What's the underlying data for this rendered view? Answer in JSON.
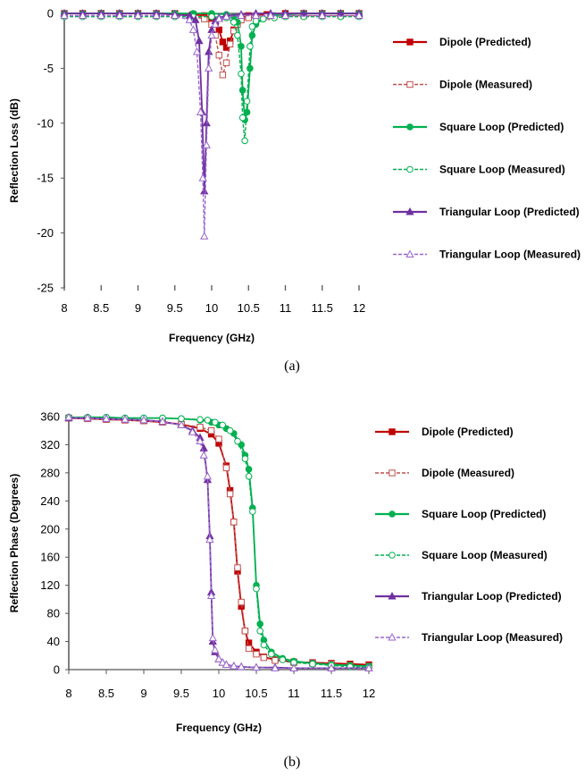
{
  "colors": {
    "dipole": "#c00000",
    "dipole_measured": "#c0504d",
    "square": "#00b050",
    "triangular": "#7030a0",
    "triangular_measured": "#9966cc"
  },
  "chart_data": [
    {
      "type": "line",
      "caption": "(a)",
      "xlabel": "Frequency (GHz)",
      "ylabel": "Reflection Loss (dB)",
      "xlim": [
        8,
        12
      ],
      "ylim": [
        -25,
        0
      ],
      "xticks": [
        "8",
        "8.5",
        "9",
        "9.5",
        "10",
        "10.5",
        "11",
        "11.5",
        "12"
      ],
      "yticks": [
        "0",
        "-5",
        "-10",
        "-15",
        "-20",
        "-25"
      ],
      "grid": false,
      "legend_position": "right",
      "series": [
        {
          "name": "Dipole (Predicted)",
          "color": "#c00000",
          "dash": false,
          "marker": "square",
          "filled": true,
          "x": [
            8,
            8.25,
            8.5,
            8.75,
            9,
            9.25,
            9.5,
            9.75,
            9.9,
            10.0,
            10.05,
            10.1,
            10.15,
            10.2,
            10.25,
            10.3,
            10.35,
            10.4,
            10.5,
            10.75,
            11,
            11.25,
            11.5,
            11.75,
            12
          ],
          "y": [
            0,
            0,
            0,
            0,
            0,
            0,
            0,
            -0.1,
            -0.2,
            -0.4,
            -0.8,
            -1.5,
            -2.6,
            -3.1,
            -2.5,
            -1.5,
            -0.8,
            -0.4,
            -0.2,
            -0.1,
            0,
            0,
            0,
            0,
            0
          ]
        },
        {
          "name": "Dipole (Measured)",
          "color": "#c0504d",
          "dash": true,
          "marker": "square",
          "filled": false,
          "x": [
            8,
            8.25,
            8.5,
            8.75,
            9,
            9.25,
            9.5,
            9.75,
            9.9,
            10.0,
            10.05,
            10.1,
            10.15,
            10.2,
            10.25,
            10.3,
            10.35,
            10.4,
            10.5,
            10.75,
            11,
            11.25,
            11.5,
            11.75,
            12
          ],
          "y": [
            -0.2,
            -0.2,
            -0.2,
            -0.2,
            -0.2,
            -0.2,
            -0.2,
            -0.3,
            -0.5,
            -1.0,
            -2.0,
            -3.8,
            -5.6,
            -4.5,
            -2.8,
            -1.6,
            -1.0,
            -0.6,
            -0.4,
            -0.3,
            -0.2,
            -0.2,
            -0.2,
            -0.2,
            -0.2
          ]
        },
        {
          "name": "Square Loop (Predicted)",
          "color": "#00b050",
          "dash": false,
          "marker": "circle",
          "filled": true,
          "x": [
            8,
            8.25,
            8.5,
            8.75,
            9,
            9.25,
            9.5,
            9.75,
            10,
            10.2,
            10.3,
            10.35,
            10.4,
            10.42,
            10.45,
            10.48,
            10.52,
            10.55,
            10.6,
            10.7,
            10.85,
            11,
            11.25,
            11.5,
            11.75,
            12
          ],
          "y": [
            0,
            0,
            0,
            0,
            0,
            0,
            0,
            0,
            0,
            -0.1,
            -0.3,
            -0.8,
            -3.0,
            -7.0,
            -9.7,
            -9.0,
            -5.0,
            -2.0,
            -1.0,
            -0.5,
            -0.2,
            -0.1,
            0,
            0,
            0,
            0
          ]
        },
        {
          "name": "Square Loop (Measured)",
          "color": "#00b050",
          "dash": true,
          "marker": "circle",
          "filled": false,
          "x": [
            8,
            8.25,
            8.5,
            8.75,
            9,
            9.25,
            9.5,
            9.75,
            10,
            10.2,
            10.3,
            10.35,
            10.4,
            10.42,
            10.45,
            10.48,
            10.52,
            10.55,
            10.6,
            10.7,
            10.85,
            11,
            11.25,
            11.5,
            11.75,
            12
          ],
          "y": [
            -0.3,
            -0.3,
            -0.3,
            -0.3,
            -0.3,
            -0.3,
            -0.3,
            -0.3,
            -0.3,
            -0.4,
            -0.8,
            -2.0,
            -5.5,
            -9.5,
            -11.6,
            -8.0,
            -3.0,
            -1.2,
            -0.7,
            -0.5,
            -0.4,
            -0.3,
            -0.3,
            -0.3,
            -0.3,
            -0.3
          ]
        },
        {
          "name": "Triangular Loop (Predicted)",
          "color": "#7030a0",
          "dash": false,
          "marker": "triangle",
          "filled": true,
          "x": [
            8,
            8.25,
            8.5,
            8.75,
            9,
            9.25,
            9.5,
            9.7,
            9.78,
            9.83,
            9.87,
            9.9,
            9.93,
            9.96,
            10.0,
            10.05,
            10.1,
            10.2,
            10.4,
            10.6,
            10.8,
            11,
            11.25,
            11.5,
            11.75,
            12
          ],
          "y": [
            0,
            0,
            0,
            0,
            0,
            0,
            -0.1,
            -0.2,
            -0.6,
            -2.5,
            -9.0,
            -16.2,
            -10.0,
            -3.5,
            -1.5,
            -0.7,
            -0.4,
            -0.2,
            -0.1,
            0,
            0,
            0,
            0,
            0,
            0,
            0
          ]
        },
        {
          "name": "Triangular Loop (Measured)",
          "color": "#9966cc",
          "dash": true,
          "marker": "triangle",
          "filled": false,
          "x": [
            8,
            8.25,
            8.5,
            8.75,
            9,
            9.25,
            9.5,
            9.7,
            9.75,
            9.8,
            9.85,
            9.88,
            9.9,
            9.93,
            9.96,
            10.0,
            10.05,
            10.1,
            10.2,
            10.4,
            10.6,
            10.8,
            11,
            11.5,
            12
          ],
          "y": [
            -0.2,
            -0.2,
            -0.2,
            -0.2,
            -0.2,
            -0.2,
            -0.2,
            -0.6,
            -1.5,
            -3.5,
            -9.0,
            -15.0,
            -20.3,
            -12.0,
            -5.0,
            -2.0,
            -1.0,
            -0.5,
            -0.3,
            -0.2,
            -0.2,
            -0.2,
            -0.2,
            -0.2,
            -0.2
          ]
        }
      ]
    },
    {
      "type": "line",
      "caption": "(b)",
      "xlabel": "Frequency (GHz)",
      "ylabel": "Reflection Phase (Degrees)",
      "xlim": [
        8,
        12
      ],
      "ylim": [
        0,
        360
      ],
      "xticks": [
        "8",
        "8.5",
        "9",
        "9.5",
        "10",
        "10.5",
        "11",
        "11.5",
        "12"
      ],
      "yticks": [
        "0",
        "40",
        "80",
        "120",
        "160",
        "200",
        "240",
        "280",
        "320",
        "360"
      ],
      "grid": false,
      "legend_position": "right",
      "series": [
        {
          "name": "Dipole (Predicted)",
          "color": "#c00000",
          "dash": false,
          "marker": "square",
          "filled": true,
          "x": [
            8,
            8.25,
            8.5,
            8.75,
            9,
            9.25,
            9.5,
            9.75,
            9.9,
            10.0,
            10.1,
            10.15,
            10.2,
            10.25,
            10.3,
            10.35,
            10.4,
            10.5,
            10.6,
            10.75,
            11,
            11.25,
            11.5,
            11.75,
            12
          ],
          "y": [
            358,
            357,
            356,
            355,
            354,
            352,
            349,
            343,
            335,
            322,
            290,
            255,
            210,
            140,
            90,
            55,
            38,
            25,
            18,
            14,
            11,
            10,
            9,
            8,
            7
          ]
        },
        {
          "name": "Dipole (Measured)",
          "color": "#c0504d",
          "dash": true,
          "marker": "square",
          "filled": false,
          "x": [
            8,
            8.25,
            8.5,
            8.75,
            9,
            9.25,
            9.5,
            9.75,
            9.9,
            10.0,
            10.1,
            10.15,
            10.2,
            10.25,
            10.3,
            10.35,
            10.4,
            10.5,
            10.6,
            10.75,
            11,
            11.25,
            11.5,
            11.75,
            12
          ],
          "y": [
            358,
            357,
            356,
            355,
            354,
            352,
            349,
            345,
            340,
            328,
            287,
            250,
            210,
            145,
            96,
            55,
            30,
            22,
            17,
            13,
            10,
            9,
            8,
            6,
            5
          ]
        },
        {
          "name": "Square Loop (Predicted)",
          "color": "#00b050",
          "dash": false,
          "marker": "circle",
          "filled": true,
          "x": [
            8,
            8.25,
            8.5,
            8.75,
            9,
            9.25,
            9.5,
            9.75,
            9.9,
            10.0,
            10.1,
            10.2,
            10.3,
            10.35,
            10.4,
            10.45,
            10.5,
            10.55,
            10.6,
            10.7,
            10.85,
            11,
            11.25,
            11.5,
            11.75,
            12
          ],
          "y": [
            359,
            359,
            359,
            358,
            358,
            358,
            357,
            355,
            352,
            348,
            343,
            336,
            320,
            305,
            285,
            230,
            120,
            65,
            42,
            25,
            16,
            12,
            9,
            7,
            6,
            5
          ]
        },
        {
          "name": "Square Loop (Measured)",
          "color": "#00b050",
          "dash": true,
          "marker": "circle",
          "filled": false,
          "x": [
            8,
            8.25,
            8.5,
            8.75,
            9,
            9.25,
            9.5,
            9.75,
            9.85,
            9.95,
            10.05,
            10.15,
            10.25,
            10.35,
            10.4,
            10.45,
            10.5,
            10.55,
            10.6,
            10.7,
            10.85,
            11,
            11.25,
            11.5,
            11.75,
            12
          ],
          "y": [
            359,
            359,
            359,
            358,
            358,
            358,
            357,
            356,
            355,
            352,
            348,
            340,
            325,
            300,
            275,
            225,
            115,
            55,
            35,
            22,
            14,
            10,
            8,
            6,
            4,
            3
          ]
        },
        {
          "name": "Triangular Loop (Predicted)",
          "color": "#7030a0",
          "dash": false,
          "marker": "triangle",
          "filled": true,
          "x": [
            8,
            8.25,
            8.5,
            8.75,
            9,
            9.25,
            9.5,
            9.65,
            9.75,
            9.8,
            9.85,
            9.88,
            9.9,
            9.92,
            9.95,
            10.0,
            10.05,
            10.1,
            10.2,
            10.3,
            10.5,
            10.75,
            11,
            11.5,
            12
          ],
          "y": [
            358,
            358,
            357,
            356,
            355,
            353,
            348,
            340,
            330,
            315,
            270,
            190,
            110,
            40,
            25,
            15,
            10,
            7,
            5,
            4,
            3,
            3,
            2,
            2,
            2
          ]
        },
        {
          "name": "Triangular Loop (Measured)",
          "color": "#9966cc",
          "dash": true,
          "marker": "triangle",
          "filled": false,
          "x": [
            8,
            8.25,
            8.5,
            8.75,
            9,
            9.25,
            9.5,
            9.65,
            9.75,
            9.8,
            9.85,
            9.88,
            9.9,
            9.92,
            9.95,
            10.0,
            10.05,
            10.1,
            10.2,
            10.3,
            10.5,
            10.75,
            11,
            11.5,
            12
          ],
          "y": [
            359,
            358,
            357,
            356,
            355,
            353,
            348,
            338,
            325,
            305,
            275,
            185,
            105,
            45,
            28,
            15,
            10,
            7,
            5,
            4,
            3,
            2,
            2,
            2,
            2
          ]
        }
      ]
    }
  ]
}
